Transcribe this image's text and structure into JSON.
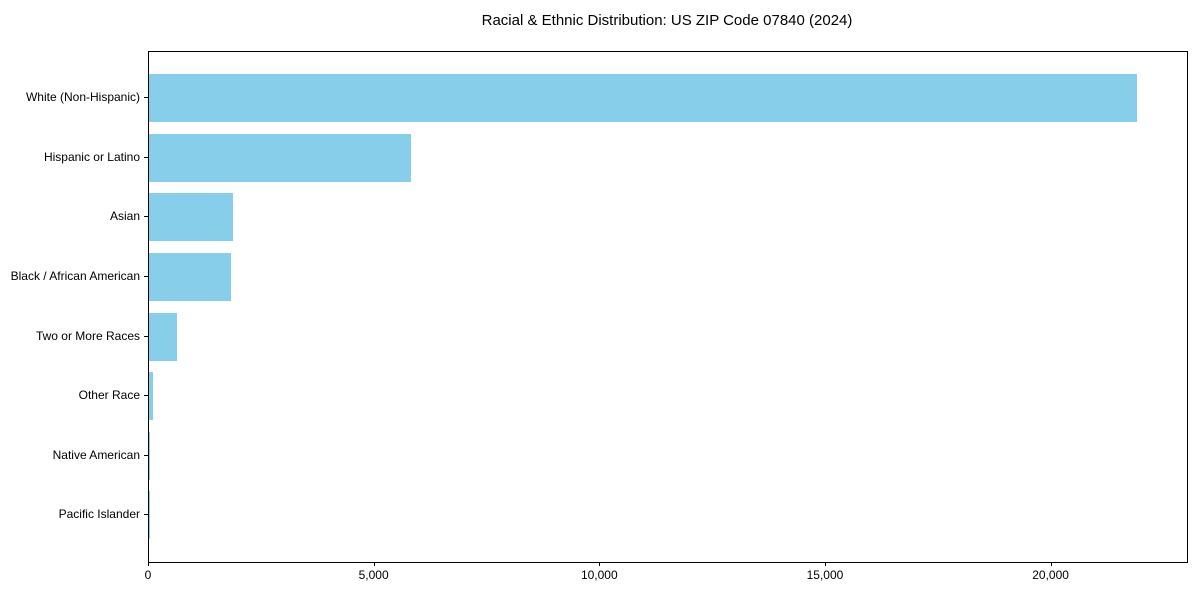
{
  "chart_data": {
    "type": "bar",
    "orientation": "horizontal",
    "title": "Racial & Ethnic Distribution: US ZIP Code 07840 (2024)",
    "categories": [
      "White (Non-Hispanic)",
      "Hispanic or Latino",
      "Asian",
      "Black / African American",
      "Two or More Races",
      "Other Race",
      "Native American",
      "Pacific Islander"
    ],
    "values": [
      21900,
      5800,
      1870,
      1810,
      620,
      80,
      15,
      8
    ],
    "xlabel": "",
    "ylabel": "",
    "xlim": [
      0,
      23000
    ],
    "xticks": [
      0,
      5000,
      10000,
      15000,
      20000
    ],
    "xtick_labels": [
      "0",
      "5,000",
      "10,000",
      "15,000",
      "20,000"
    ],
    "bar_color": "#87CEEB",
    "background_color": "#ffffff",
    "text_color": "#000000",
    "grid": false,
    "legend": "none"
  }
}
